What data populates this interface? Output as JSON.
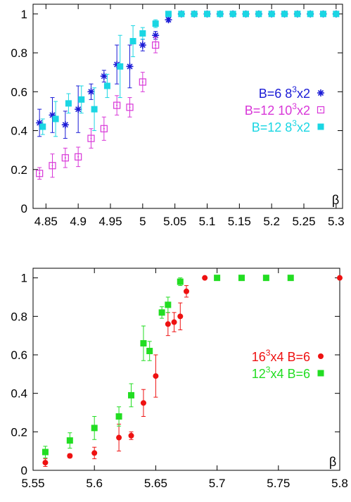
{
  "chart_data": [
    {
      "type": "scatter",
      "xlim": [
        4.83,
        5.31
      ],
      "ylim": [
        0,
        1.05
      ],
      "xticks": [
        "4.85",
        "4.9",
        "4.95",
        "5",
        "5.05",
        "5.1",
        "5.15",
        "5.2",
        "5.25",
        "5.3"
      ],
      "xtick_values": [
        4.85,
        4.9,
        4.95,
        5.0,
        5.05,
        5.1,
        5.15,
        5.2,
        5.25,
        5.3
      ],
      "yticks": [
        "0",
        "0.2",
        "0.4",
        "0.6",
        "0.8",
        "1"
      ],
      "ytick_values": [
        0,
        0.2,
        0.4,
        0.6,
        0.8,
        1.0
      ],
      "xlabel": "β",
      "grid": false,
      "legend_position": "right",
      "series": [
        {
          "label_parts": [
            "B=6   8",
            "3",
            "x2"
          ],
          "marker": "star",
          "color": "#1a1ad6",
          "x": [
            4.84,
            4.86,
            4.88,
            4.9,
            4.92,
            4.94,
            4.96,
            4.98,
            5.0,
            5.02,
            5.04,
            5.06,
            5.08,
            5.1,
            5.12,
            5.14,
            5.16,
            5.18,
            5.2,
            5.22,
            5.24,
            5.26,
            5.28,
            5.3
          ],
          "y": [
            0.44,
            0.48,
            0.43,
            0.51,
            0.6,
            0.68,
            0.74,
            0.73,
            0.84,
            0.89,
            0.97,
            1,
            1,
            1,
            1,
            1,
            1,
            1,
            1,
            1,
            1,
            1,
            1,
            1
          ],
          "err": [
            0.07,
            0.09,
            0.07,
            0.12,
            0.04,
            0.03,
            0.1,
            0.11,
            0.03,
            0.02,
            0.01,
            0,
            0,
            0,
            0,
            0,
            0,
            0,
            0,
            0,
            0,
            0,
            0,
            0
          ]
        },
        {
          "label_parts": [
            "B=12  10",
            "3",
            "x2"
          ],
          "marker": "square-open",
          "color": "#d836d8",
          "x": [
            4.84,
            4.86,
            4.88,
            4.9,
            4.92,
            4.94,
            4.96,
            4.98,
            5.0,
            5.02
          ],
          "y": [
            0.18,
            0.22,
            0.26,
            0.265,
            0.36,
            0.41,
            0.53,
            0.52,
            0.65,
            0.84
          ],
          "err": [
            0.03,
            0.06,
            0.05,
            0.05,
            0.05,
            0.06,
            0.05,
            0.05,
            0.05,
            0.04
          ]
        },
        {
          "label_parts": [
            "B=12  8",
            "3",
            "x2"
          ],
          "marker": "square-filled",
          "color": "#1ad6e3",
          "x": [
            4.845,
            4.865,
            4.885,
            4.905,
            4.925,
            4.945,
            4.965,
            4.985,
            5.0,
            5.02,
            5.04,
            5.06,
            5.08,
            5.1,
            5.12,
            5.14,
            5.16,
            5.18,
            5.2,
            5.22,
            5.24,
            5.26,
            5.28,
            5.3
          ],
          "y": [
            0.42,
            0.46,
            0.54,
            0.56,
            0.51,
            0.63,
            0.73,
            0.86,
            0.9,
            0.95,
            1,
            1,
            1,
            1,
            1,
            1,
            1,
            1,
            1,
            1,
            1,
            1,
            1,
            1
          ],
          "err": [
            0.04,
            0.09,
            0.05,
            0.07,
            0.11,
            0.06,
            0.16,
            0.08,
            0.03,
            0.02,
            0,
            0,
            0,
            0,
            0,
            0,
            0,
            0,
            0,
            0,
            0,
            0,
            0,
            0
          ]
        }
      ]
    },
    {
      "type": "scatter",
      "xlim": [
        5.55,
        5.8
      ],
      "ylim": [
        0,
        1.05
      ],
      "xticks": [
        "5.55",
        "5.6",
        "5.65",
        "5.7",
        "5.75",
        "5.8"
      ],
      "xtick_values": [
        5.55,
        5.6,
        5.65,
        5.7,
        5.75,
        5.8
      ],
      "yticks": [
        "0",
        "0.2",
        "0.4",
        "0.6",
        "0.8",
        "1"
      ],
      "ytick_values": [
        0,
        0.2,
        0.4,
        0.6,
        0.8,
        1.0
      ],
      "xlabel": "β",
      "grid": false,
      "legend_position": "right",
      "series": [
        {
          "label_parts": [
            "16",
            "3",
            "x4 B=6"
          ],
          "marker": "circle-filled",
          "color": "#ee1111",
          "x": [
            5.56,
            5.58,
            5.6,
            5.62,
            5.63,
            5.64,
            5.65,
            5.66,
            5.665,
            5.67,
            5.675,
            5.69,
            5.8
          ],
          "y": [
            0.04,
            0.075,
            0.09,
            0.17,
            0.18,
            0.35,
            0.49,
            0.76,
            0.77,
            0.8,
            0.93,
            1,
            1
          ],
          "err": [
            0.02,
            0.01,
            0.03,
            0.07,
            0.02,
            0.07,
            0.11,
            0.06,
            0.05,
            0.07,
            0.03,
            0,
            0
          ]
        },
        {
          "label_parts": [
            "12",
            "3",
            "x4 B=6"
          ],
          "marker": "square-filled",
          "color": "#22dd22",
          "x": [
            5.56,
            5.58,
            5.6,
            5.62,
            5.63,
            5.64,
            5.645,
            5.655,
            5.66,
            5.67,
            5.7,
            5.72,
            5.74,
            5.76
          ],
          "y": [
            0.095,
            0.155,
            0.22,
            0.28,
            0.39,
            0.66,
            0.62,
            0.82,
            0.86,
            0.98,
            1,
            1,
            1,
            1
          ],
          "err": [
            0.03,
            0.04,
            0.06,
            0.05,
            0.06,
            0.09,
            0.05,
            0.03,
            0.04,
            0.02,
            0,
            0,
            0,
            0
          ]
        }
      ]
    }
  ]
}
